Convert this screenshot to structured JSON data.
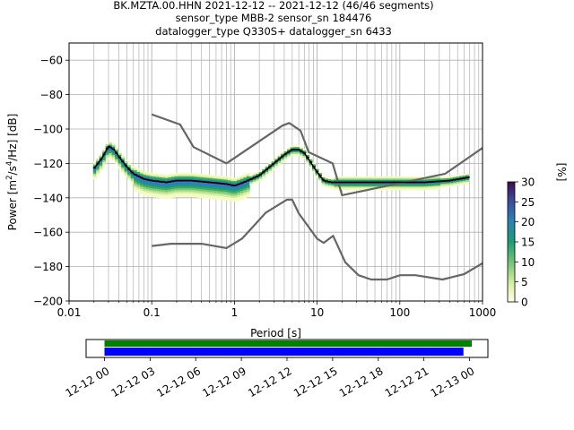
{
  "title": {
    "line1": "BK.MZTA.00.HHN   2021-12-12 -- 2021-12-12  (46/46 segments)",
    "line2": "sensor_type MBB-2 sensor_sn 184476",
    "line3": "datalogger_type Q330S+ datalogger_sn 6433"
  },
  "chart_data": [
    {
      "type": "heatmap",
      "title": "BK.MZTA.00.HHN   2021-12-12 -- 2021-12-12  (46/46 segments)",
      "xlabel": "Period [s]",
      "ylabel": "Power [m²/s⁴/Hz] [dB]",
      "xscale": "log",
      "xlim": [
        0.01,
        1000
      ],
      "ylim": [
        -200,
        -50
      ],
      "x_tick_labels": [
        "0.01",
        "0.1",
        "1",
        "10",
        "100",
        "1000"
      ],
      "y_tick_labels": [
        "−60",
        "−80",
        "−100",
        "−120",
        "−140",
        "−160",
        "−180",
        "−200"
      ],
      "grid": true,
      "colorbar": {
        "label": "[%]",
        "range": [
          0,
          30
        ],
        "tick_labels": [
          "0",
          "5",
          "10",
          "15",
          "20",
          "25",
          "30"
        ]
      },
      "mode_curve": {
        "x": [
          0.02,
          0.025,
          0.03,
          0.035,
          0.04,
          0.05,
          0.06,
          0.08,
          0.1,
          0.15,
          0.2,
          0.3,
          0.5,
          0.8,
          1.0,
          1.3,
          2,
          3,
          4,
          5,
          6,
          7,
          8,
          10,
          12,
          15,
          20,
          30,
          50,
          100,
          200,
          400,
          700
        ],
        "y": [
          -123,
          -117,
          -110,
          -112,
          -116,
          -122,
          -126,
          -129,
          -130,
          -131,
          -130,
          -130,
          -131,
          -132,
          -133,
          -131,
          -127,
          -120,
          -115,
          -112,
          -112,
          -114,
          -118,
          -125,
          -130,
          -131,
          -131,
          -131,
          -131,
          -131,
          -131,
          -130,
          -128
        ]
      },
      "noise_models": [
        {
          "name": "NHNM",
          "x": [
            0.1,
            0.22,
            0.32,
            0.8,
            3.8,
            4.6,
            6.3,
            7.9,
            15.4,
            20,
            354.8,
            1000
          ],
          "y": [
            -91.5,
            -97.4,
            -110.5,
            -120,
            -98,
            -96.5,
            -101,
            -113.5,
            -120,
            -138.5,
            -126,
            -111
          ]
        },
        {
          "name": "NLNM",
          "x": [
            0.1,
            0.17,
            0.4,
            0.8,
            1.24,
            2.4,
            4.3,
            5.0,
            6.0,
            10,
            12,
            15.6,
            21.9,
            31.6,
            45,
            70,
            101,
            154,
            328,
            600,
            1000
          ],
          "y": [
            -168,
            -166.7,
            -166.7,
            -169.2,
            -163.7,
            -148.6,
            -141.1,
            -141.1,
            -149,
            -163.8,
            -166.2,
            -162.1,
            -177.5,
            -185,
            -187.5,
            -187.5,
            -185,
            -185,
            -187.5,
            -184.4,
            -178
          ]
        }
      ],
      "timeline": {
        "x_tick_labels": [
          "12-12 00",
          "12-12 03",
          "12-12 06",
          "12-12 09",
          "12-12 12",
          "12-12 15",
          "12-12 18",
          "12-12 21",
          "12-13 00"
        ],
        "data_coverage": {
          "start_hours": 0,
          "end_hours": 24.15,
          "color": "#008000"
        },
        "psd_coverage": {
          "start_hours": 0,
          "end_hours": 23.6,
          "color": "#0000ff"
        }
      }
    }
  ]
}
